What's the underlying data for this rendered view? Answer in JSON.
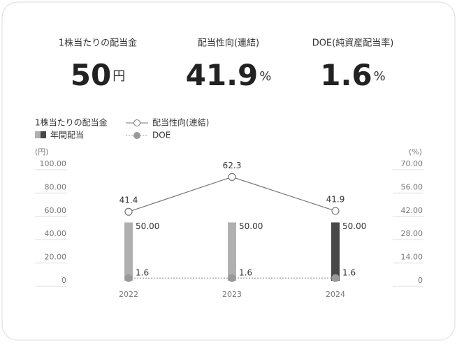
{
  "header": {
    "kpis": [
      {
        "label": "1株当たりの配当金",
        "value": "50",
        "unit": "円"
      },
      {
        "label": "配当性向(連結)",
        "value": "41.9",
        "unit": "%"
      },
      {
        "label": "DOE(純資産配当率)",
        "value": "1.6",
        "unit": "%"
      }
    ]
  },
  "chart_data": {
    "type": "bar",
    "legend_group_title": "1株当たりの配当金",
    "categories": [
      "2022",
      "2023",
      "2024"
    ],
    "y_unit": "(円)",
    "y2_unit": "(%)",
    "ylim": [
      0,
      100
    ],
    "yticks": [
      0,
      {
        "value": 20,
        "label": "20.00"
      },
      {
        "value": 40,
        "label": "40.00"
      },
      {
        "value": 60,
        "label": "60.00"
      },
      {
        "value": 80,
        "label": "80.00"
      },
      {
        "value": 100,
        "label": "100.00"
      }
    ],
    "y2lim": [
      0,
      70
    ],
    "y2ticks": [
      0,
      {
        "value": 14,
        "label": "14.00"
      },
      {
        "value": 28,
        "label": "28.00"
      },
      {
        "value": 42,
        "label": "42.00"
      },
      {
        "value": 56,
        "label": "56.00"
      },
      {
        "value": 70,
        "label": "70.00"
      }
    ],
    "series": [
      {
        "name": "年間配当",
        "type": "bar",
        "colors": [
          "#b0b0b0",
          "#b0b0b0",
          "#474747"
        ],
        "values": [
          50,
          50,
          50
        ],
        "value_labels": [
          "50.00",
          "50.00",
          "50.00"
        ]
      },
      {
        "name": "配当性向(連結)",
        "type": "line",
        "axis": "y2",
        "color": "#777777",
        "marker": "open",
        "values": [
          41.4,
          62.3,
          41.9
        ]
      },
      {
        "name": "DOE",
        "type": "line",
        "axis": "y2",
        "color": "#999999",
        "marker": "filled",
        "linestyle": "dotted",
        "values": [
          1.6,
          1.6,
          1.6
        ]
      }
    ]
  }
}
